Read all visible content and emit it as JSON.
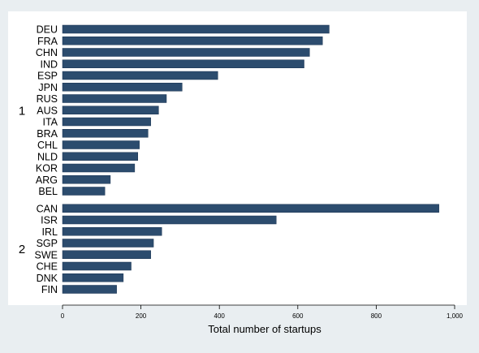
{
  "chart_data": {
    "type": "bar",
    "orientation": "horizontal",
    "xlabel": "Total number of startups",
    "xlim": [
      0,
      1000
    ],
    "xticks": [
      0,
      200,
      400,
      600,
      800,
      1000
    ],
    "xtick_labels": [
      "0",
      "200",
      "400",
      "600",
      "800",
      "1,000"
    ],
    "grid": false,
    "bar_color": "#2c4c6e",
    "groups": [
      {
        "label": "1",
        "categories": [
          "DEU",
          "FRA",
          "CHN",
          "IND",
          "ESP",
          "JPN",
          "RUS",
          "AUS",
          "ITA",
          "BRA",
          "CHL",
          "NLD",
          "KOR",
          "ARG",
          "BEL"
        ],
        "values": [
          680,
          663,
          630,
          616,
          396,
          305,
          265,
          245,
          225,
          218,
          196,
          192,
          184,
          122,
          108
        ]
      },
      {
        "label": "2",
        "categories": [
          "CAN",
          "ISR",
          "IRL",
          "SGP",
          "SWE",
          "CHE",
          "DNK",
          "FIN"
        ],
        "values": [
          960,
          545,
          253,
          232,
          225,
          175,
          155,
          138
        ]
      }
    ]
  }
}
